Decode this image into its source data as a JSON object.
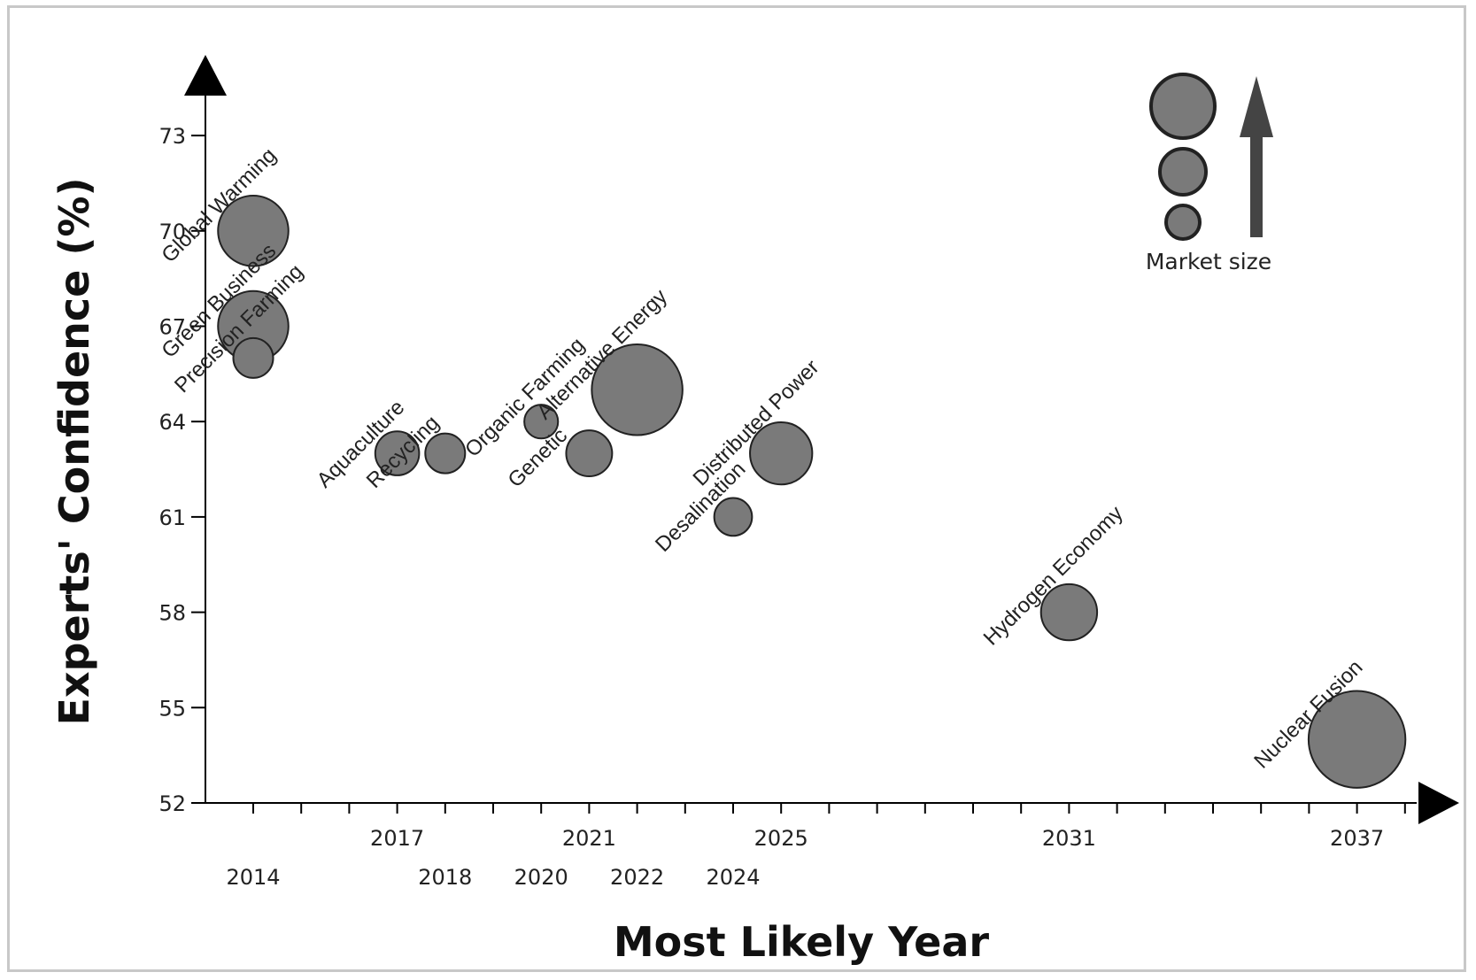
{
  "chart_data": {
    "type": "bubble",
    "xlabel": "Most Likely Year",
    "ylabel": "Experts' Confidence (%)",
    "y_ticks": [
      52,
      55,
      58,
      61,
      64,
      67,
      70,
      73
    ],
    "x_ticks_row1": [
      2017,
      2021,
      2025,
      2031,
      2037
    ],
    "x_ticks_row2": [
      2014,
      2018,
      2020,
      2022,
      2024
    ],
    "xlim": [
      2013,
      2038
    ],
    "ylim": [
      52,
      73
    ],
    "legend": {
      "label": "Market size",
      "placement": "top-right"
    },
    "points": [
      {
        "label": "Global Warming",
        "x": 2014,
        "y": 70,
        "size": 2.5
      },
      {
        "label": "Green Business",
        "x": 2014,
        "y": 67,
        "size": 2.5
      },
      {
        "label": "Precision Farming",
        "x": 2014,
        "y": 66,
        "size": 1.0
      },
      {
        "label": "Aquaculture",
        "x": 2017,
        "y": 63,
        "size": 1.2
      },
      {
        "label": "Recycling",
        "x": 2018,
        "y": 63,
        "size": 1.0
      },
      {
        "label": "Organic Farming",
        "x": 2020,
        "y": 64,
        "size": 0.7
      },
      {
        "label": "Genetic",
        "x": 2021,
        "y": 63,
        "size": 1.3
      },
      {
        "label": "Alternative Energy",
        "x": 2022,
        "y": 65,
        "size": 3.5
      },
      {
        "label": "Distributed Power",
        "x": 2025,
        "y": 63,
        "size": 2.1
      },
      {
        "label": "Desalination",
        "x": 2024,
        "y": 61,
        "size": 0.9
      },
      {
        "label": "Hydrogen Economy",
        "x": 2031,
        "y": 58,
        "size": 1.8
      },
      {
        "label": "Nuclear Fusion",
        "x": 2037,
        "y": 54,
        "size": 3.8
      }
    ],
    "colors": {
      "bubble_fill": "#7a7a7a",
      "bubble_stroke": "#222222",
      "axis": "#000000",
      "legend_arrow": "#444444"
    }
  }
}
